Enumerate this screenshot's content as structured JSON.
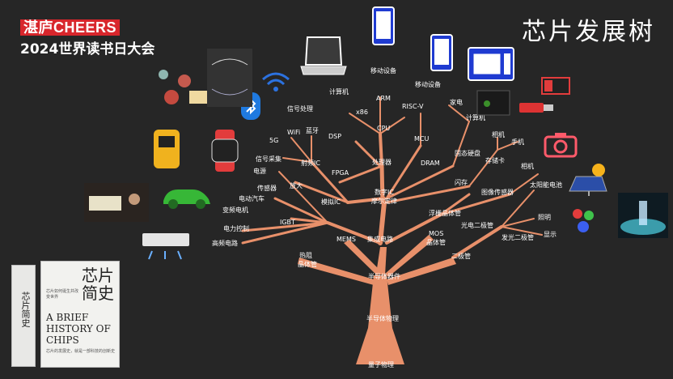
{
  "header": {
    "brand": "湛庐CHEERS",
    "event": "2024世界读书日大会",
    "title": "芯片发展树"
  },
  "book": {
    "spine_title": "芯片简史",
    "cover_title_cn": "芯片简史",
    "cover_title_en": "A BRIEF HISTORY OF CHIPS",
    "cover_subtitle": "芯片如何诞生并改变世界",
    "cover_tagline": "芯片的发展史，就是一部科技的创新史"
  },
  "tree": {
    "root": "量子物理",
    "trunk": "半导体物理",
    "core": "半导体器件",
    "nodes": {
      "jingti": "晶体管",
      "rezhi": "热阻",
      "jicheng": "集成电路",
      "mems": "MEMS",
      "mos": "MOS",
      "fudian": "浮栅晶体管",
      "ergui": "二极管",
      "fagu": "发光二极管",
      "guangdian": "光电二极管",
      "shuzi": "数字IC",
      "moer": "摩尔定律",
      "mose": "模拟IC",
      "chuli": "处理器",
      "dram": "DRAM",
      "shancun": "闪存",
      "gutai": "固态硬盘",
      "cunchuka": "存储卡",
      "tuxiang": "图像传感器",
      "taiyang": "太阳能电池",
      "zhaoming": "照明",
      "xianshi": "显示",
      "fpga": "FPGA",
      "dsp": "DSP",
      "cpu": "CPU",
      "mcu": "MCU",
      "x86": "x86",
      "arm": "ARM",
      "riscv": "RISC-V",
      "jisuanji1": "计算机",
      "yidong1": "移动设备",
      "yidong2": "移动设备",
      "jiadian": "家电",
      "jisuanji2": "计算机",
      "shouji": "手机",
      "xiangji": "相机",
      "xiangji2": "相机",
      "shepin": "射频IC",
      "fangda": "放大",
      "wifi": "WiFi",
      "lanya": "蓝牙",
      "g5": "5G",
      "xinhao": "信号处理",
      "xinhaocaiji": "信号采集",
      "dianyuan": "电源",
      "chuanganqi": "传感器",
      "diandong": "电动汽车",
      "bianpin": "变频电机",
      "igbt": "IGBT",
      "dianli": "电力控制",
      "gaopin": "高频电路"
    }
  },
  "icons": [
    "wifi-icon",
    "bluetooth-icon",
    "laptop-icon",
    "phone-icon",
    "tablet-icon",
    "microwave-icon",
    "game-console-icon",
    "sd-card-icon",
    "usb-drive-icon",
    "camera-icon",
    "solar-panel-icon",
    "led-icon",
    "light-sculpture-icon",
    "electric-car-icon",
    "air-conditioner-icon",
    "smartwatch-icon",
    "glucose-meter-icon",
    "molecule-diagram-icon",
    "circuit-chart-icon",
    "car-headlight-photo"
  ],
  "colors": {
    "branch": "#e8906a",
    "background": "#262626",
    "brand": "#d8262c",
    "text": "#ffffff"
  }
}
